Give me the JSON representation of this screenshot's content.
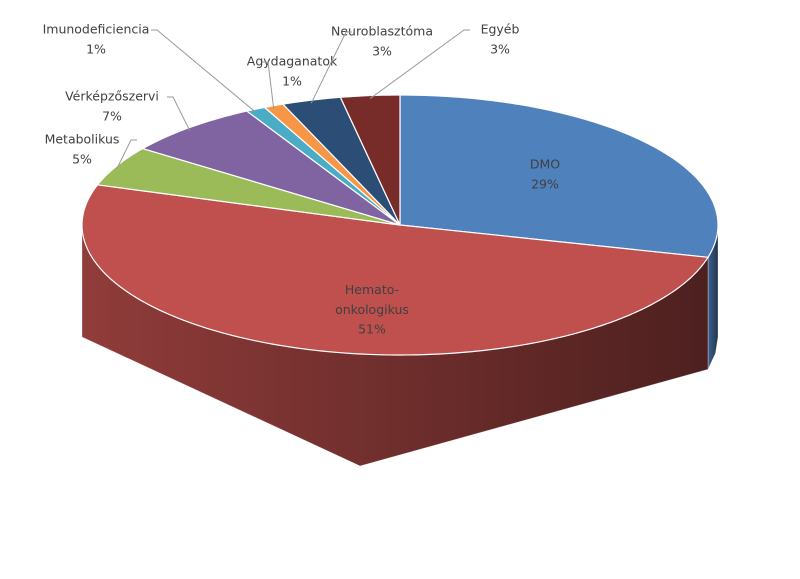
{
  "chart_data": {
    "type": "pie3d",
    "categories": [
      "DMO",
      "Hemato-onkologikus",
      "Metabolikus",
      "Vérképzőszervi",
      "Imunodeficiencia",
      "Agydaganatok",
      "Neuroblasztóma",
      "Egyéb"
    ],
    "values": [
      29,
      51,
      5,
      7,
      1,
      1,
      3,
      3
    ],
    "value_labels": [
      "29%",
      "51%",
      "5%",
      "7%",
      "1%",
      "1%",
      "3%",
      "3%"
    ],
    "colors": [
      "#4f81bd",
      "#c0504d",
      "#9bbb59",
      "#8064a2",
      "#4bacc6",
      "#f79646",
      "#2c4d75",
      "#772c2a"
    ]
  }
}
